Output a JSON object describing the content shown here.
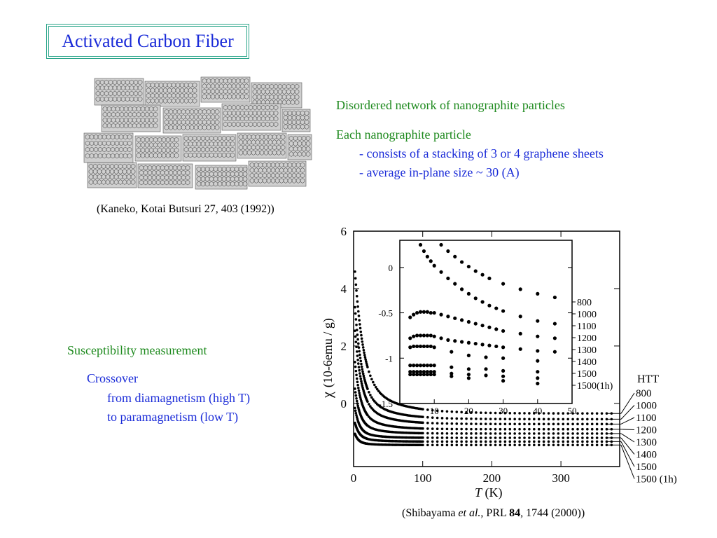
{
  "title": "Activated Carbon Fiber",
  "illustration_citation": "(Kaneko, Kotai Butsuri 27, 403 (1992))",
  "description": {
    "line1": "Disordered network of nanographite particles",
    "line2": "Each nanographite particle",
    "bullet1": "- consists of a stacking of 3 or 4 graphene sheets",
    "bullet2": "- average in-plane size ~ 30 (A)"
  },
  "measurement": {
    "heading": "Susceptibility measurement",
    "subheading": "Crossover",
    "line1": "from diamagnetism  (high T)",
    "line2": "to paramagnetism (low T)"
  },
  "plot_citation": {
    "prefix": "(Shibayama ",
    "etal": "et al.",
    "mid": ", PRL ",
    "volume": "84",
    "suffix": ", 1744 (2000))"
  },
  "colors": {
    "title": "#1a2bd8",
    "green": "#1e8a1e",
    "blue": "#1a2bd8",
    "border": "#2aa58a"
  },
  "chart_data": [
    {
      "type": "scatter",
      "xlabel_symbol": "T",
      "xlabel_unit": " (K)",
      "ylabel_symbol": "χ",
      "ylabel_unit": "(10-6emu / g)",
      "xlim": [
        0,
        385
      ],
      "ylim": [
        -2.2,
        6
      ],
      "xticks": [
        "0",
        "100",
        "200",
        "300"
      ],
      "xtick_values": [
        0,
        100,
        200,
        300
      ],
      "yticks": [
        "0",
        "2",
        "4",
        "6"
      ],
      "ytick_values": [
        0,
        2,
        4,
        6
      ],
      "legend_title": "HTT",
      "series": [
        {
          "name": "800",
          "baseline": -0.35,
          "amp": 3.8,
          "tau": 12
        },
        {
          "name": "1000",
          "baseline": -0.55,
          "amp": 3.0,
          "tau": 10
        },
        {
          "name": "1100",
          "baseline": -0.72,
          "amp": 2.5,
          "tau": 9
        },
        {
          "name": "1200",
          "baseline": -0.9,
          "amp": 1.8,
          "tau": 8
        },
        {
          "name": "1300",
          "baseline": -1.05,
          "amp": 1.2,
          "tau": 7
        },
        {
          "name": "1400",
          "baseline": -1.2,
          "amp": 0.8,
          "tau": 6
        },
        {
          "name": "1500",
          "baseline": -1.33,
          "amp": 0.5,
          "tau": 6
        },
        {
          "name": "1500 (1h)",
          "baseline": -1.45,
          "amp": 0.3,
          "tau": 5
        }
      ]
    },
    {
      "type": "scatter",
      "title": "inset",
      "xlim": [
        0,
        50
      ],
      "ylim": [
        -1.5,
        0.3
      ],
      "xticks": [
        "10",
        "20",
        "30",
        "40",
        "50"
      ],
      "xtick_values": [
        10,
        20,
        30,
        40,
        50
      ],
      "yticks": [
        "0",
        "-0.5",
        "-1",
        "-1.5"
      ],
      "ytick_values": [
        0,
        -0.5,
        -1,
        -1.5
      ],
      "legend_labels": [
        "800",
        "1000",
        "1100",
        "1200",
        "1300",
        "1400",
        "1500",
        "1500(1h)"
      ],
      "series": [
        {
          "name": "800",
          "points": [
            [
              6,
              0.25
            ],
            [
              7,
              0.18
            ],
            [
              8,
              0.12
            ],
            [
              9,
              0.07
            ],
            [
              10,
              0.02
            ],
            [
              12,
              -0.05
            ],
            [
              14,
              -0.12
            ],
            [
              16,
              -0.18
            ],
            [
              18,
              -0.24
            ],
            [
              20,
              -0.29
            ],
            [
              22,
              -0.34
            ],
            [
              24,
              -0.38
            ],
            [
              26,
              -0.42
            ],
            [
              28,
              -0.45
            ],
            [
              30,
              -0.48
            ],
            [
              35,
              -0.54
            ],
            [
              40,
              -0.59
            ],
            [
              45,
              -0.62
            ]
          ]
        },
        {
          "name": "1000",
          "points": [
            [
              12,
              0.25
            ],
            [
              14,
              0.18
            ],
            [
              16,
              0.12
            ],
            [
              18,
              0.06
            ],
            [
              20,
              0.01
            ],
            [
              22,
              -0.04
            ],
            [
              24,
              -0.08
            ],
            [
              26,
              -0.12
            ],
            [
              30,
              -0.18
            ],
            [
              35,
              -0.24
            ],
            [
              40,
              -0.29
            ],
            [
              45,
              -0.33
            ]
          ]
        },
        {
          "name": "1100",
          "points": [
            [
              3,
              -0.55
            ],
            [
              4,
              -0.52
            ],
            [
              5,
              -0.5
            ],
            [
              6,
              -0.49
            ],
            [
              7,
              -0.49
            ],
            [
              8,
              -0.49
            ],
            [
              9,
              -0.5
            ],
            [
              10,
              -0.5
            ],
            [
              12,
              -0.52
            ],
            [
              14,
              -0.54
            ],
            [
              16,
              -0.56
            ],
            [
              18,
              -0.58
            ],
            [
              20,
              -0.6
            ],
            [
              22,
              -0.62
            ],
            [
              24,
              -0.64
            ],
            [
              26,
              -0.66
            ],
            [
              28,
              -0.68
            ],
            [
              30,
              -0.7
            ],
            [
              35,
              -0.73
            ],
            [
              40,
              -0.76
            ],
            [
              45,
              -0.78
            ]
          ]
        },
        {
          "name": "1200",
          "points": [
            [
              3,
              -0.78
            ],
            [
              4,
              -0.76
            ],
            [
              5,
              -0.75
            ],
            [
              6,
              -0.75
            ],
            [
              7,
              -0.75
            ],
            [
              8,
              -0.75
            ],
            [
              9,
              -0.75
            ],
            [
              10,
              -0.76
            ],
            [
              12,
              -0.78
            ],
            [
              14,
              -0.8
            ],
            [
              16,
              -0.81
            ],
            [
              18,
              -0.82
            ],
            [
              20,
              -0.83
            ],
            [
              22,
              -0.84
            ],
            [
              24,
              -0.85
            ],
            [
              26,
              -0.86
            ],
            [
              28,
              -0.87
            ],
            [
              30,
              -0.88
            ],
            [
              35,
              -0.9
            ],
            [
              40,
              -0.92
            ],
            [
              45,
              -0.93
            ]
          ]
        },
        {
          "name": "1300",
          "points": [
            [
              3,
              -0.88
            ],
            [
              4,
              -0.87
            ],
            [
              5,
              -0.87
            ],
            [
              6,
              -0.87
            ],
            [
              7,
              -0.87
            ],
            [
              8,
              -0.87
            ],
            [
              9,
              -0.87
            ],
            [
              10,
              -0.88
            ],
            [
              15,
              -0.93
            ],
            [
              20,
              -0.97
            ],
            [
              25,
              -0.99
            ],
            [
              30,
              -1.0
            ],
            [
              40,
              -1.03
            ]
          ]
        },
        {
          "name": "1400",
          "points": [
            [
              3,
              -1.08
            ],
            [
              4,
              -1.08
            ],
            [
              5,
              -1.08
            ],
            [
              6,
              -1.08
            ],
            [
              7,
              -1.08
            ],
            [
              8,
              -1.08
            ],
            [
              9,
              -1.08
            ],
            [
              10,
              -1.08
            ],
            [
              15,
              -1.1
            ],
            [
              20,
              -1.12
            ],
            [
              25,
              -1.12
            ],
            [
              30,
              -1.14
            ],
            [
              40,
              -1.15
            ]
          ]
        },
        {
          "name": "1500",
          "points": [
            [
              3,
              -1.15
            ],
            [
              4,
              -1.15
            ],
            [
              5,
              -1.15
            ],
            [
              6,
              -1.15
            ],
            [
              7,
              -1.15
            ],
            [
              8,
              -1.15
            ],
            [
              9,
              -1.15
            ],
            [
              10,
              -1.15
            ],
            [
              15,
              -1.17
            ],
            [
              20,
              -1.18
            ],
            [
              25,
              -1.19
            ],
            [
              30,
              -1.2
            ],
            [
              40,
              -1.22
            ]
          ]
        },
        {
          "name": "1500(1h)",
          "points": [
            [
              3,
              -1.18
            ],
            [
              4,
              -1.18
            ],
            [
              5,
              -1.18
            ],
            [
              6,
              -1.18
            ],
            [
              7,
              -1.18
            ],
            [
              8,
              -1.18
            ],
            [
              9,
              -1.18
            ],
            [
              10,
              -1.18
            ],
            [
              15,
              -1.2
            ],
            [
              20,
              -1.22
            ],
            [
              30,
              -1.25
            ],
            [
              40,
              -1.28
            ]
          ]
        }
      ]
    }
  ]
}
